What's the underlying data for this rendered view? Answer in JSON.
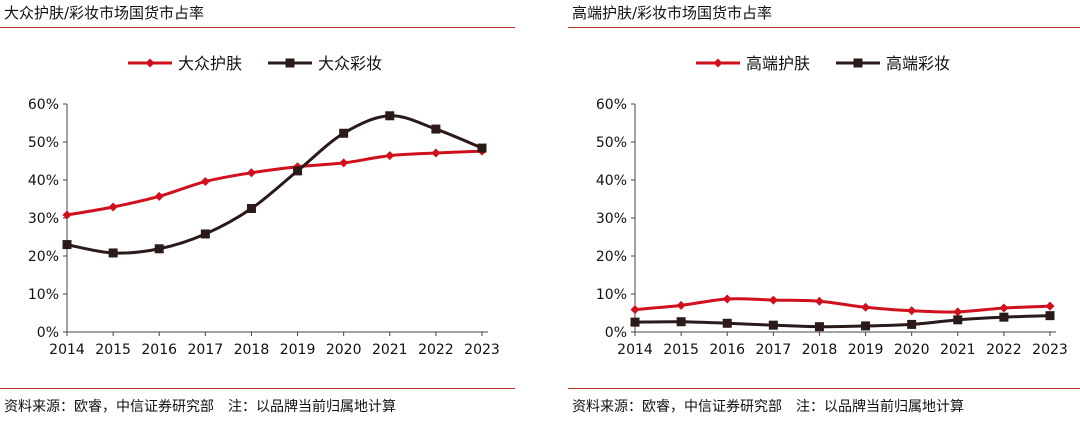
{
  "panels": [
    {
      "title": "大众护肤/彩妆市场国货市占率",
      "source": "资料来源：欧睿，中信证券研究部　注：以品牌当前归属地计算"
    },
    {
      "title": "高端护肤/彩妆市场国货市占率",
      "source": "资料来源：欧睿，中信证券研究部　注：以品牌当前归属地计算"
    }
  ],
  "chart_data": [
    {
      "type": "line",
      "title": "大众护肤/彩妆市场国货市占率",
      "x": [
        "2014",
        "2015",
        "2016",
        "2017",
        "2018",
        "2019",
        "2020",
        "2021",
        "2022",
        "2023"
      ],
      "yticks": [
        "0%",
        "10%",
        "20%",
        "30%",
        "40%",
        "50%",
        "60%"
      ],
      "ylim": [
        0,
        60
      ],
      "unit": "%",
      "legend_position": "top",
      "grid": false,
      "series": [
        {
          "name": "大众护肤",
          "color": "#d0101c",
          "marker": "diamond",
          "values": [
            30.8,
            32.9,
            35.7,
            39.6,
            41.9,
            43.5,
            44.5,
            46.4,
            47.1,
            47.6
          ]
        },
        {
          "name": "大众彩妆",
          "color": "#2b1a1a",
          "marker": "square",
          "values": [
            23.0,
            20.8,
            21.9,
            25.8,
            32.5,
            42.4,
            52.3,
            56.9,
            53.4,
            48.4
          ]
        }
      ]
    },
    {
      "type": "line",
      "title": "高端护肤/彩妆市场国货市占率",
      "x": [
        "2014",
        "2015",
        "2016",
        "2017",
        "2018",
        "2019",
        "2020",
        "2021",
        "2022",
        "2023"
      ],
      "yticks": [
        "0%",
        "10%",
        "20%",
        "30%",
        "40%",
        "50%",
        "60%"
      ],
      "ylim": [
        0,
        60
      ],
      "unit": "%",
      "legend_position": "top",
      "grid": false,
      "series": [
        {
          "name": "高端护肤",
          "color": "#d0101c",
          "marker": "diamond",
          "values": [
            5.9,
            7.0,
            8.7,
            8.4,
            8.1,
            6.5,
            5.6,
            5.3,
            6.3,
            6.8
          ]
        },
        {
          "name": "高端彩妆",
          "color": "#2b1a1a",
          "marker": "square",
          "values": [
            2.6,
            2.7,
            2.3,
            1.8,
            1.4,
            1.6,
            2.0,
            3.2,
            3.9,
            4.3
          ]
        }
      ]
    }
  ]
}
